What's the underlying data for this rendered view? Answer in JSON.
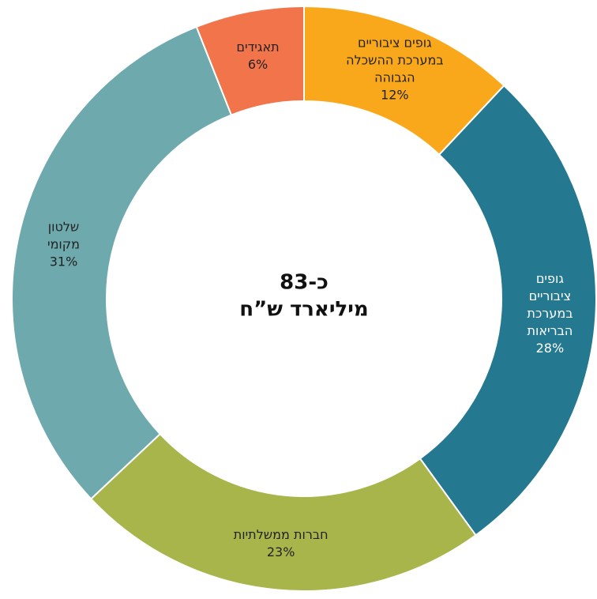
{
  "chart_data": {
    "type": "donut",
    "center_label": [
      "כ-83",
      "מיליארד ש”ח"
    ],
    "categories": [
      [
        "גופים ציבוריים",
        "במערכת ההשכלה",
        "הגבוהה"
      ],
      [
        "גופים",
        "ציבוריים",
        "במערכת",
        "הבריאות"
      ],
      [
        "חברות ממשלתיות"
      ],
      [
        "שלטון",
        "מקומי"
      ],
      [
        "תאגידים"
      ]
    ],
    "values": [
      12,
      28,
      23,
      31,
      6
    ],
    "value_labels": [
      "12%",
      "28%",
      "23%",
      "31%",
      "6%"
    ],
    "colors": [
      "#f9a81c",
      "#24788f",
      "#a8b54b",
      "#6eaaad",
      "#f1744a"
    ]
  }
}
